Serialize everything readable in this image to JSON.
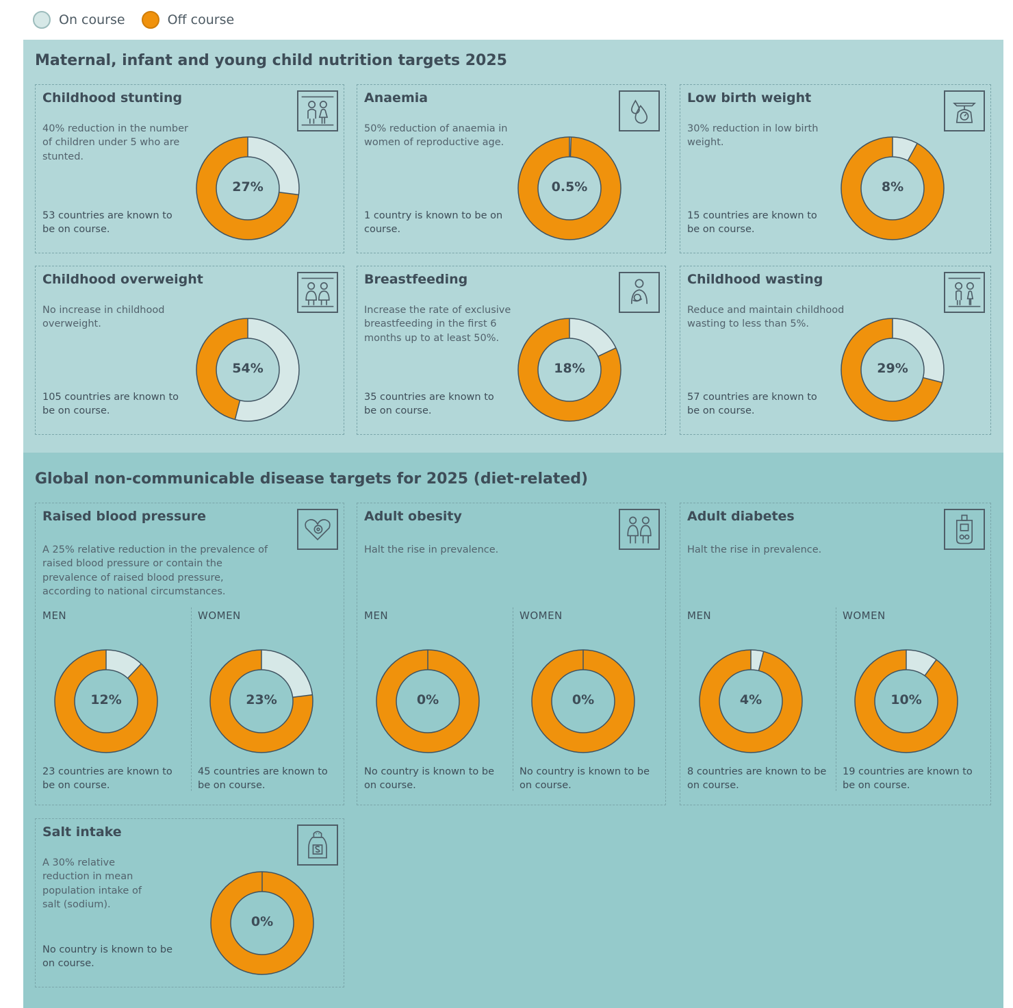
{
  "legend": [
    {
      "label": "On course",
      "color": "#d6e8e7"
    },
    {
      "label": "Off course",
      "color": "#f0920c"
    }
  ],
  "colors": {
    "on_course": "#d6e8e7",
    "off_course": "#f0920c",
    "stroke": "#3f5260"
  },
  "sections": [
    {
      "title": "Maternal, infant and young child nutrition targets 2025",
      "cards": [
        {
          "title": "Childhood stunting",
          "desc": "40% reduction in the number of children under 5 who are stunted.",
          "status": "53 countries are known to be on course.",
          "icon": "children-icon",
          "value_label": "27%",
          "on_course_percent": 27
        },
        {
          "title": "Anaemia",
          "desc": "50% reduction of anaemia in women of reproductive age.",
          "status": "1 country is known to be on course.",
          "icon": "blood-drop-icon",
          "value_label": "0.5%",
          "on_course_percent": 0.5
        },
        {
          "title": "Low birth weight",
          "desc": "30% reduction in low birth weight.",
          "status": "15 countries are known to be on course.",
          "icon": "scale-icon",
          "value_label": "8%",
          "on_course_percent": 8
        },
        {
          "title": "Childhood overweight",
          "desc": "No increase in childhood overweight.",
          "status": "105 countries are known to be on course.",
          "icon": "children-icon",
          "value_label": "54%",
          "on_course_percent": 54
        },
        {
          "title": "Breastfeeding",
          "desc": "Increase the rate of exclusive breastfeeding in the first 6 months up to at least 50%.",
          "status": "35 countries are known to be on course.",
          "icon": "mother-baby-icon",
          "value_label": "18%",
          "on_course_percent": 18
        },
        {
          "title": "Childhood wasting",
          "desc": "Reduce and maintain childhood wasting to less than 5%.",
          "status": "57 countries are known to be on course.",
          "icon": "children-icon",
          "value_label": "29%",
          "on_course_percent": 29
        }
      ]
    },
    {
      "title": "Global non-communicable disease targets for 2025 (diet-related)",
      "cards": [
        {
          "title": "Raised blood pressure",
          "desc": "A 25% relative reduction in the prevalence of raised blood pressure or contain the prevalence of raised blood pressure, according to national circumstances.",
          "icon": "heart-icon",
          "panels": [
            {
              "label": "MEN",
              "value_label": "12%",
              "on_course_percent": 12,
              "status": "23 countries are known to be on course."
            },
            {
              "label": "WOMEN",
              "value_label": "23%",
              "on_course_percent": 23,
              "status": "45 countries are known to be on course."
            }
          ]
        },
        {
          "title": "Adult obesity",
          "desc": "Halt the rise in prevalence.",
          "icon": "adults-icon",
          "panels": [
            {
              "label": "MEN",
              "value_label": "0%",
              "on_course_percent": 0,
              "status": "No country is known to be on course."
            },
            {
              "label": "WOMEN",
              "value_label": "0%",
              "on_course_percent": 0,
              "status": "No country is known to be on course."
            }
          ]
        },
        {
          "title": "Adult diabetes",
          "desc": "Halt the rise in prevalence.",
          "icon": "glucose-meter-icon",
          "panels": [
            {
              "label": "MEN",
              "value_label": "4%",
              "on_course_percent": 4,
              "status": "8 countries are known to be on course."
            },
            {
              "label": "WOMEN",
              "value_label": "10%",
              "on_course_percent": 10,
              "status": "19 countries are known to be on course."
            }
          ]
        },
        {
          "title": "Salt intake",
          "desc": "A 30% relative reduction in mean population intake of salt (sodium).",
          "status": "No country is known to be on course.",
          "icon": "salt-shaker-icon",
          "value_label": "0%",
          "on_course_percent": 0
        }
      ]
    }
  ],
  "chart_data": {
    "type": "pie",
    "subtype": "donut",
    "legend": [
      "On course",
      "Off course"
    ],
    "series": [
      {
        "name": "Childhood stunting",
        "on_course": 27
      },
      {
        "name": "Anaemia",
        "on_course": 0.5
      },
      {
        "name": "Low birth weight",
        "on_course": 8
      },
      {
        "name": "Childhood overweight",
        "on_course": 54
      },
      {
        "name": "Breastfeeding",
        "on_course": 18
      },
      {
        "name": "Childhood wasting",
        "on_course": 29
      },
      {
        "name": "Raised blood pressure — MEN",
        "on_course": 12
      },
      {
        "name": "Raised blood pressure — WOMEN",
        "on_course": 23
      },
      {
        "name": "Adult obesity — MEN",
        "on_course": 0
      },
      {
        "name": "Adult obesity — WOMEN",
        "on_course": 0
      },
      {
        "name": "Adult diabetes — MEN",
        "on_course": 4
      },
      {
        "name": "Adult diabetes — WOMEN",
        "on_course": 10
      },
      {
        "name": "Salt intake",
        "on_course": 0
      }
    ]
  }
}
